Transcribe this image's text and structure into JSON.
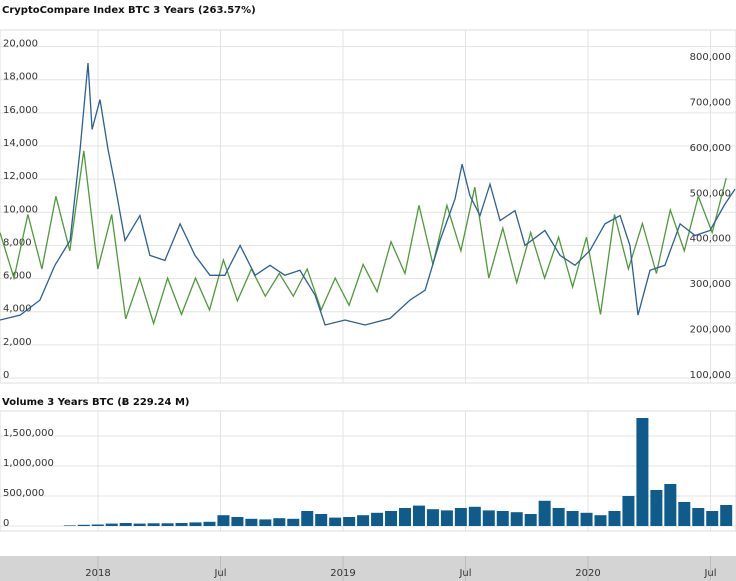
{
  "chart_data": [
    {
      "type": "line",
      "title": "CryptoCompare Index BTC 3 Years (263.57%)",
      "xlim": [
        2017.6,
        2020.604
      ],
      "xticks": [
        {
          "value": 2018,
          "label": "2018"
        },
        {
          "value": 2018.5,
          "label": "Jul"
        },
        {
          "value": 2019,
          "label": "2019"
        },
        {
          "value": 2019.5,
          "label": "Jul"
        },
        {
          "value": 2020,
          "label": "2020"
        },
        {
          "value": 2020.5,
          "label": "Jul"
        }
      ],
      "ylim": [
        -300,
        21000
      ],
      "yticks": [
        0,
        {
          "value": 2000,
          "label": "2,000"
        },
        {
          "value": 4000,
          "label": "4,000"
        },
        {
          "value": 6000,
          "label": "6,000"
        },
        {
          "value": 8000,
          "label": "8,000"
        },
        {
          "value": 10000,
          "label": "10,000"
        },
        {
          "value": 12000,
          "label": "12,000"
        },
        {
          "value": 14000,
          "label": "14,000"
        },
        {
          "value": 16000,
          "label": "16,000"
        },
        {
          "value": 18000,
          "label": "18,000"
        },
        {
          "value": 20000,
          "label": "20,000"
        }
      ],
      "y2lim": [
        89000,
        866000
      ],
      "y2ticks": [
        {
          "value": 100000,
          "label": "100,000"
        },
        {
          "value": 200000,
          "label": "200,000"
        },
        {
          "value": 300000,
          "label": "300,000"
        },
        {
          "value": 400000,
          "label": "400,000"
        },
        {
          "value": 500000,
          "label": "500,000"
        },
        {
          "value": 600000,
          "label": "600,000"
        },
        {
          "value": 700000,
          "label": "700,000"
        },
        {
          "value": 800000,
          "label": "800,000"
        }
      ],
      "grid": true,
      "series": [
        {
          "color": "#4f9a3a",
          "axis": "y2",
          "x": [
            2017.6,
            2017.657,
            2017.714,
            2017.771,
            2017.828,
            2017.885,
            2017.942,
            2017.999,
            2018.056,
            2018.113,
            2018.17,
            2018.227,
            2018.284,
            2018.341,
            2018.398,
            2018.455,
            2018.512,
            2018.569,
            2018.626,
            2018.683,
            2018.74,
            2018.797,
            2018.854,
            2018.911,
            2018.968,
            2019.025,
            2019.082,
            2019.139,
            2019.196,
            2019.253,
            2019.31,
            2019.367,
            2019.424,
            2019.481,
            2019.538,
            2019.595,
            2019.652,
            2019.709,
            2019.766,
            2019.823,
            2019.88,
            2019.937,
            2019.994,
            2020.051,
            2020.108,
            2020.165,
            2020.222,
            2020.279,
            2020.336,
            2020.393,
            2020.45,
            2020.507,
            2020.564
          ],
          "values": [
            420000,
            320000,
            460000,
            340000,
            500000,
            380000,
            600000,
            340000,
            460000,
            230000,
            320000,
            220000,
            320000,
            240000,
            320000,
            250000,
            360000,
            270000,
            340000,
            280000,
            330000,
            280000,
            340000,
            250000,
            320000,
            260000,
            350000,
            290000,
            400000,
            330000,
            480000,
            350000,
            480000,
            380000,
            520000,
            320000,
            430000,
            310000,
            420000,
            320000,
            410000,
            300000,
            410000,
            240000,
            460000,
            340000,
            440000,
            330000,
            470000,
            380000,
            500000,
            420000,
            540000
          ]
        },
        {
          "color": "#2d5f91",
          "x": [
            2017.6,
            2017.682,
            2017.763,
            2017.824,
            2017.886,
            2017.927,
            2017.959,
            2017.976,
            2018.008,
            2018.041,
            2018.069,
            2018.11,
            2018.171,
            2018.212,
            2018.273,
            2018.335,
            2018.396,
            2018.457,
            2018.518,
            2018.58,
            2018.641,
            2018.702,
            2018.763,
            2018.824,
            2018.886,
            2018.927,
            2019.008,
            2019.09,
            2019.192,
            2019.273,
            2019.335,
            2019.396,
            2019.457,
            2019.486,
            2019.518,
            2019.559,
            2019.6,
            2019.641,
            2019.702,
            2019.743,
            2019.824,
            2019.886,
            2019.947,
            2020.008,
            2020.069,
            2020.131,
            2020.171,
            2020.204,
            2020.253,
            2020.314,
            2020.376,
            2020.437,
            2020.498,
            2020.559,
            2020.6
          ],
          "values": [
            3500,
            3800,
            4700,
            6800,
            8300,
            13800,
            19000,
            15000,
            16800,
            13800,
            11700,
            8300,
            9800,
            7400,
            7100,
            9300,
            7400,
            6200,
            6200,
            8000,
            6200,
            6800,
            6200,
            6500,
            5000,
            3200,
            3500,
            3200,
            3600,
            4700,
            5300,
            8300,
            10800,
            12900,
            11000,
            9800,
            11700,
            9500,
            10100,
            8000,
            8900,
            7400,
            6800,
            7700,
            9300,
            9800,
            8000,
            3800,
            6500,
            6800,
            9300,
            8600,
            8900,
            10500,
            11400
          ]
        }
      ]
    },
    {
      "type": "bar",
      "title": "Volume 3 Years BTC (Ƀ 229.24 M)",
      "xlim": [
        2017.6,
        2020.604
      ],
      "xticks": [
        {
          "value": 2018,
          "label": "2018"
        },
        {
          "value": 2018.5,
          "label": "Jul"
        },
        {
          "value": 2019,
          "label": "2019"
        },
        {
          "value": 2019.5,
          "label": "Jul"
        },
        {
          "value": 2020,
          "label": "2020"
        },
        {
          "value": 2020.5,
          "label": "Jul"
        }
      ],
      "ylim": [
        0,
        1900000
      ],
      "yticks": [
        0,
        {
          "value": 500000,
          "label": "500,000"
        },
        {
          "value": 1000000,
          "label": "1,000,000"
        },
        {
          "value": 1500000,
          "label": "1,500,000"
        }
      ],
      "grid": true,
      "color": "#0e5b8c",
      "x": [
        2017.6,
        2017.657,
        2017.714,
        2017.771,
        2017.828,
        2017.885,
        2017.942,
        2017.999,
        2018.056,
        2018.113,
        2018.17,
        2018.227,
        2018.284,
        2018.341,
        2018.398,
        2018.455,
        2018.512,
        2018.569,
        2018.626,
        2018.683,
        2018.74,
        2018.797,
        2018.854,
        2018.911,
        2018.968,
        2019.025,
        2019.082,
        2019.139,
        2019.196,
        2019.253,
        2019.31,
        2019.367,
        2019.424,
        2019.481,
        2019.538,
        2019.595,
        2019.652,
        2019.709,
        2019.766,
        2019.823,
        2019.88,
        2019.937,
        2019.994,
        2020.051,
        2020.108,
        2020.165,
        2020.222,
        2020.279,
        2020.336,
        2020.393,
        2020.45,
        2020.507,
        2020.564
      ],
      "values": [
        0,
        0,
        0,
        0,
        0,
        10000,
        20000,
        25000,
        40000,
        50000,
        40000,
        45000,
        45000,
        50000,
        60000,
        70000,
        180000,
        150000,
        120000,
        110000,
        130000,
        120000,
        250000,
        200000,
        140000,
        150000,
        180000,
        220000,
        250000,
        300000,
        340000,
        280000,
        260000,
        300000,
        320000,
        260000,
        250000,
        230000,
        200000,
        420000,
        300000,
        250000,
        220000,
        180000,
        250000,
        500000,
        1800000,
        600000,
        700000,
        400000,
        300000,
        250000,
        350000
      ]
    }
  ]
}
